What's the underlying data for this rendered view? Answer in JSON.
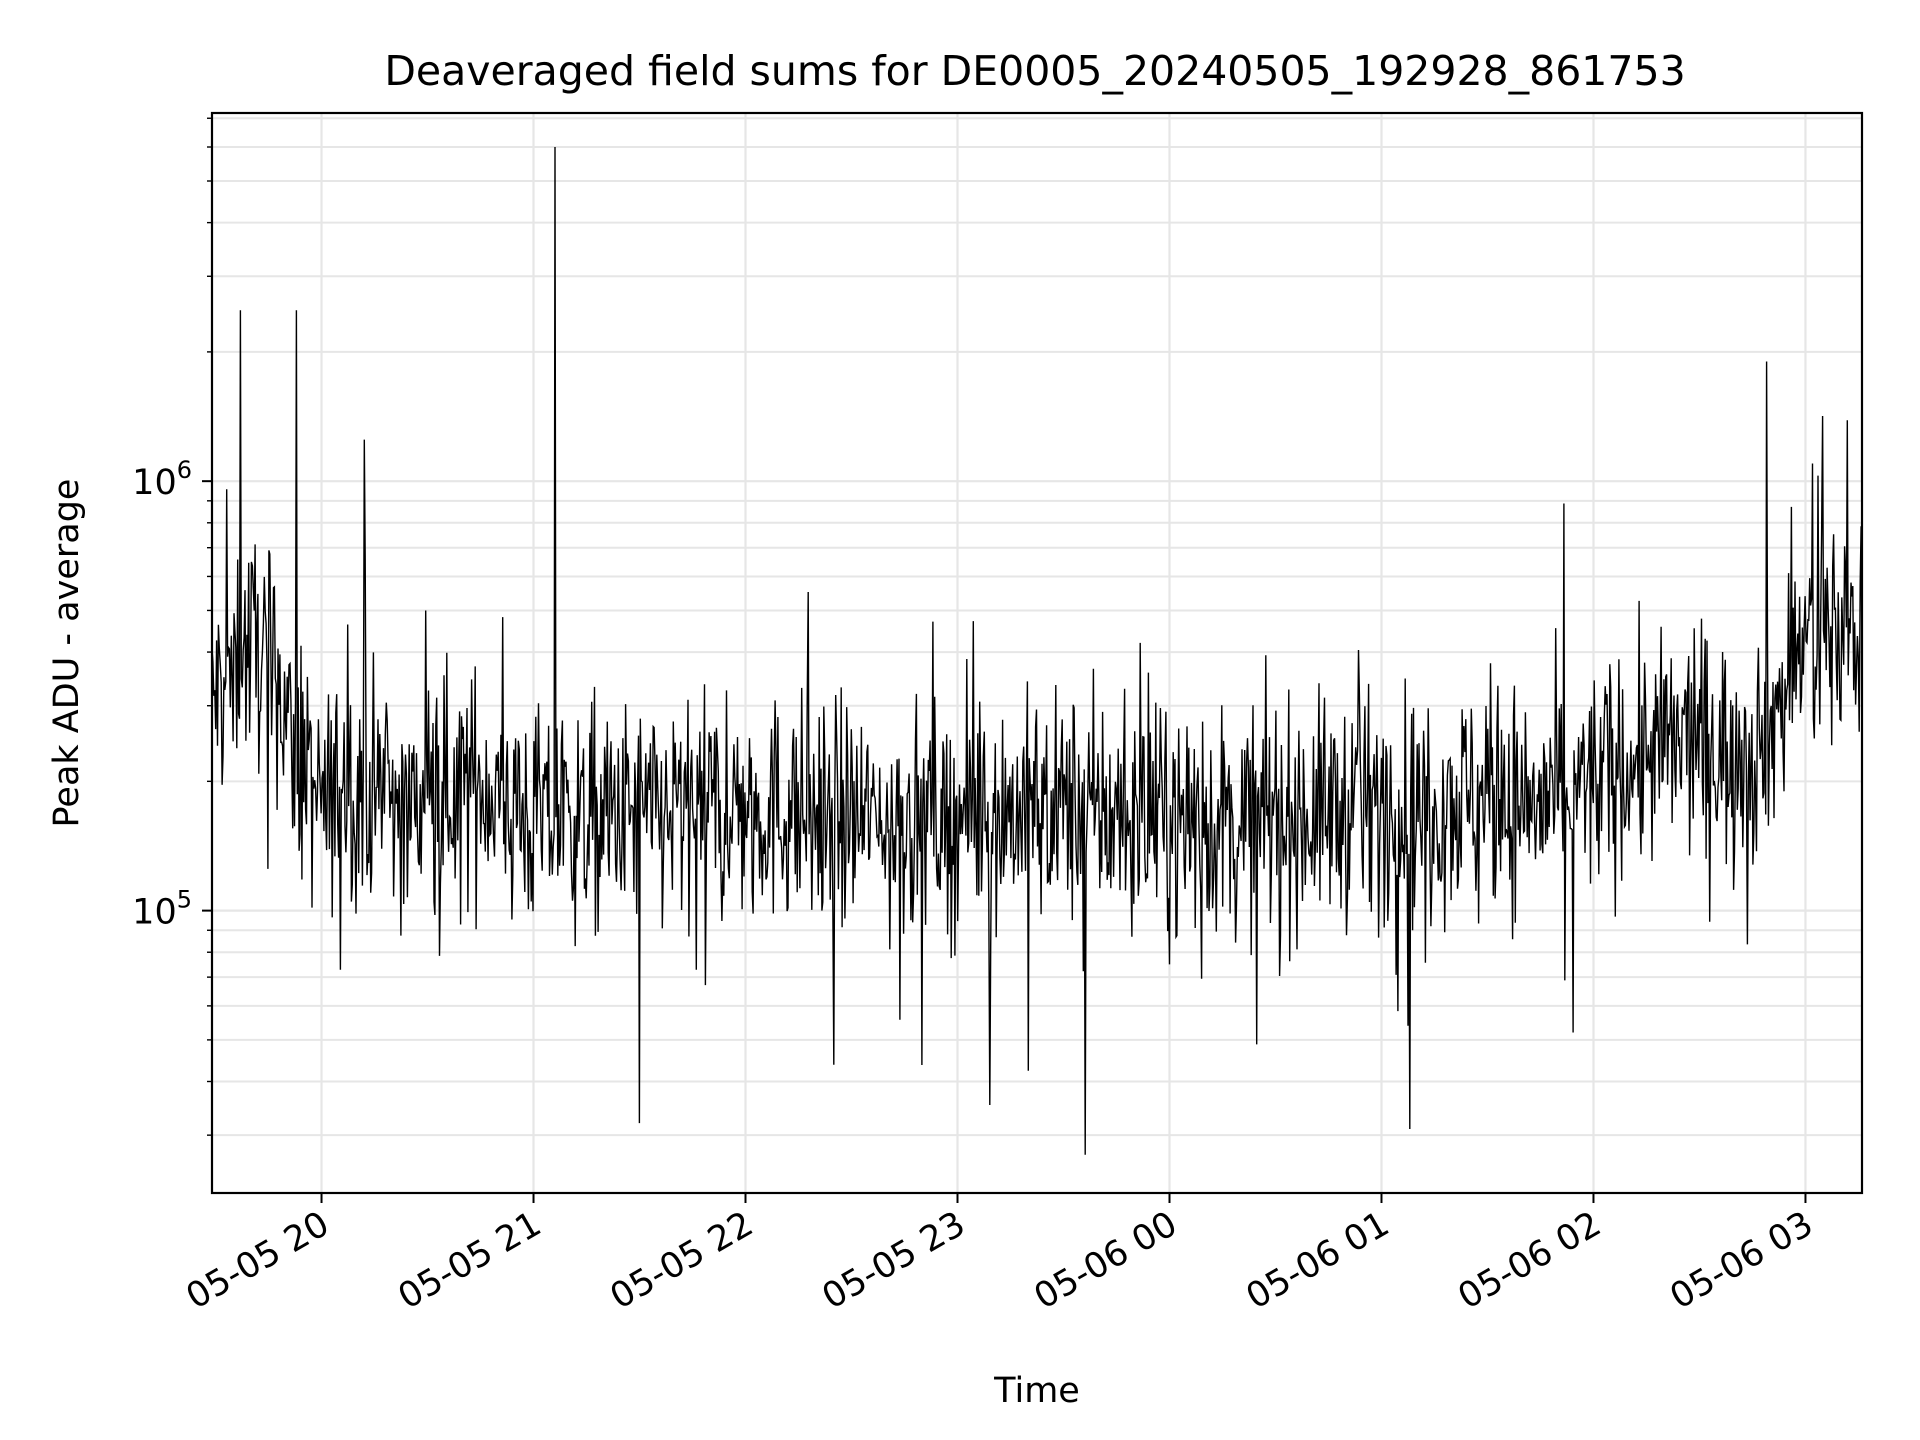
{
  "chart_data": {
    "type": "line",
    "title": "Deaveraged field sums for DE0005_20240505_192928_861753",
    "xlabel": "Time",
    "ylabel": "Peak ADU - average",
    "yscale": "log",
    "ylim": [
      22000,
      7200000
    ],
    "xlim": [
      "2024-05-05 19:29",
      "2024-05-06 03:16"
    ],
    "grid": true,
    "line_color": "#000000",
    "x_ticks": [
      "2024-05-05 20:00",
      "2024-05-05 21:00",
      "2024-05-05 22:00",
      "2024-05-05 23:00",
      "2024-05-06 00:00",
      "2024-05-06 01:00",
      "2024-05-06 02:00",
      "2024-05-06 03:00"
    ],
    "x_tick_labels": [
      "05-05 20",
      "05-05 21",
      "05-05 22",
      "05-05 23",
      "05-06 00",
      "05-06 01",
      "05-06 02",
      "05-06 03"
    ],
    "y_tick_labels": [
      {
        "value": 100000,
        "base": "10",
        "exp": "5"
      },
      {
        "value": 1000000,
        "base": "10",
        "exp": "6"
      }
    ],
    "series": [
      {
        "x": [
          "2024-05-05 19:29",
          "2024-05-05 19:35",
          "2024-05-05 19:41",
          "2024-05-05 19:47",
          "2024-05-05 19:53",
          "2024-05-05 20:00",
          "2024-05-05 20:07",
          "2024-05-05 20:15",
          "2024-05-05 20:25",
          "2024-05-05 20:35",
          "2024-05-05 20:45",
          "2024-05-05 21:00",
          "2024-05-05 21:15",
          "2024-05-05 21:30",
          "2024-05-05 21:45",
          "2024-05-05 22:00",
          "2024-05-05 22:15",
          "2024-05-05 22:30",
          "2024-05-05 22:45",
          "2024-05-05 23:00",
          "2024-05-05 23:15",
          "2024-05-05 23:30",
          "2024-05-05 23:45",
          "2024-05-06 00:00",
          "2024-05-06 00:15",
          "2024-05-06 00:30",
          "2024-05-06 00:45",
          "2024-05-06 01:00",
          "2024-05-06 01:15",
          "2024-05-06 01:30",
          "2024-05-06 01:45",
          "2024-05-06 02:00",
          "2024-05-06 02:15",
          "2024-05-06 02:30",
          "2024-05-06 02:40",
          "2024-05-06 02:50",
          "2024-05-06 03:00",
          "2024-05-06 03:08",
          "2024-05-06 03:16"
        ],
        "y": [
          300000,
          380000,
          420000,
          360000,
          220000,
          170000,
          200000,
          190000,
          170000,
          190000,
          200000,
          160000,
          160000,
          165000,
          170000,
          175000,
          170000,
          165000,
          160000,
          165000,
          170000,
          175000,
          165000,
          160000,
          160000,
          165000,
          170000,
          175000,
          180000,
          185000,
          175000,
          200000,
          230000,
          250000,
          230000,
          270000,
          430000,
          450000,
          470000
        ]
      }
    ],
    "spikes": [
      {
        "x": "2024-05-05 19:37",
        "y": 2500000
      },
      {
        "x": "2024-05-05 19:53",
        "y": 2500000
      },
      {
        "x": "2024-05-05 20:12",
        "y": 1250000
      },
      {
        "x": "2024-05-05 21:06",
        "y": 6000000
      },
      {
        "x": "2024-05-05 23:36",
        "y": 27000
      },
      {
        "x": "2024-05-06 02:49",
        "y": 1900000
      },
      {
        "x": "2024-05-05 21:30",
        "y": 32000
      },
      {
        "x": "2024-05-06 01:08",
        "y": 31000
      }
    ]
  }
}
